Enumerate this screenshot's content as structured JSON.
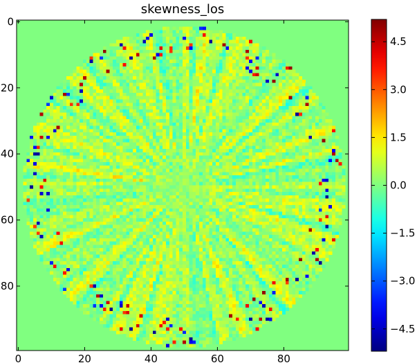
{
  "chart_data": {
    "type": "heatmap",
    "title": "skewness_los",
    "xlabel": "",
    "ylabel": "",
    "grid": false,
    "x_ticks": [
      0,
      20,
      40,
      60,
      80
    ],
    "y_ticks": [
      0,
      20,
      40,
      60,
      80
    ],
    "xlim": [
      -0.5,
      99.5
    ],
    "ylim": [
      99.5,
      -0.5
    ],
    "image_size": [
      100,
      100
    ],
    "aperture": {
      "center": [
        50,
        50
      ],
      "radius": 48.5
    },
    "background_value": 0.0,
    "colormap": "jet",
    "colorbar": {
      "vmin": -5.2,
      "vmax": 5.2,
      "ticks": [
        4.5,
        3.0,
        1.5,
        0.0,
        -1.5,
        -3.0,
        -4.5
      ],
      "tick_labels": [
        "4.5",
        "3.0",
        "1.5",
        "0.0",
        "−1.5",
        "−3.0",
        "−4.5"
      ],
      "placement": "right"
    },
    "pattern": "radial streaks with sparse extreme-value points near the outer rim"
  }
}
